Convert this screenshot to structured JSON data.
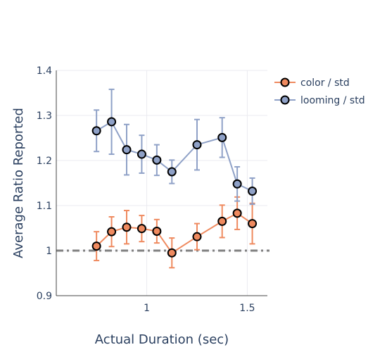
{
  "chart_data": {
    "type": "line",
    "xlabel": "Actual Duration (sec)",
    "ylabel": "Average Ratio Reported",
    "xlim": [
      0.55,
      1.6
    ],
    "ylim": [
      0.9,
      1.4
    ],
    "xticks": [
      1,
      1.5
    ],
    "xtick_labels": [
      "1",
      "1.5"
    ],
    "yticks": [
      0.9,
      1,
      1.1,
      1.2,
      1.3,
      1.4
    ],
    "ytick_labels": [
      "0.9",
      "1",
      "1.1",
      "1.2",
      "1.3",
      "1.4"
    ],
    "grid": true,
    "legend_position": "top-right",
    "reference_line": {
      "y": 1,
      "style": "dash-dot",
      "color": "#808080"
    },
    "series": [
      {
        "name": "color / std",
        "color": "#ef8a5f",
        "x": [
          0.75,
          0.825,
          0.9,
          0.975,
          1.05,
          1.125,
          1.25,
          1.375,
          1.45,
          1.525
        ],
        "y": [
          1.01,
          1.042,
          1.052,
          1.049,
          1.043,
          0.995,
          1.031,
          1.065,
          1.083,
          1.06
        ],
        "error": [
          0.032,
          0.033,
          0.037,
          0.029,
          0.026,
          0.033,
          0.029,
          0.036,
          0.036,
          0.045
        ]
      },
      {
        "name": "looming / std",
        "color": "#8fa1c7",
        "x": [
          0.75,
          0.825,
          0.9,
          0.975,
          1.05,
          1.125,
          1.25,
          1.375,
          1.45,
          1.525
        ],
        "y": [
          1.266,
          1.286,
          1.224,
          1.214,
          1.201,
          1.175,
          1.235,
          1.251,
          1.148,
          1.132
        ],
        "error": [
          0.046,
          0.072,
          0.056,
          0.042,
          0.034,
          0.026,
          0.056,
          0.044,
          0.038,
          0.029
        ]
      }
    ]
  }
}
